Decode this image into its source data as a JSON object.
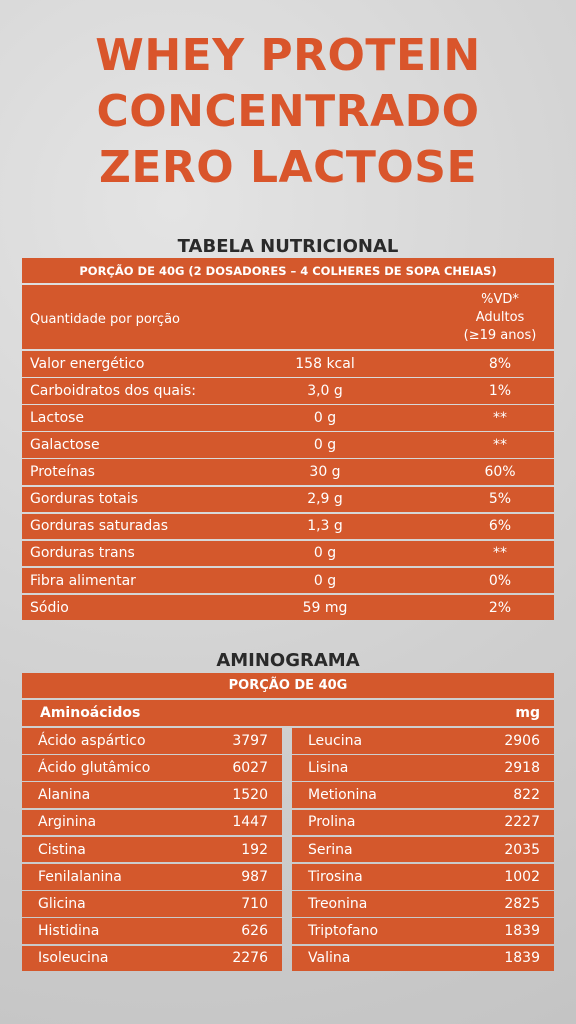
{
  "title": [
    "WHEY PROTEIN",
    "CONCENTRADO",
    "ZERO LACTOSE"
  ],
  "nutrition": {
    "heading": "TABELA NUTRICIONAL",
    "portion": "PORÇÃO DE 40G (2 DOSADORES – 4 COLHERES DE SOPA CHEIAS)",
    "header": {
      "label": "Quantidade por porção",
      "vd": [
        "%VD*",
        "Adultos",
        "(≥19 anos)"
      ]
    },
    "rows": [
      [
        "Valor energético",
        "158 kcal",
        "8%"
      ],
      [
        "Carboidratos dos quais:",
        "3,0 g",
        "1%"
      ],
      [
        "Lactose",
        "0 g",
        "**"
      ],
      [
        "Galactose",
        "0 g",
        "**"
      ],
      [
        "Proteínas",
        "30 g",
        "60%"
      ],
      [
        "Gorduras totais",
        "2,9 g",
        "5%"
      ],
      [
        "Gorduras saturadas",
        "1,3 g",
        "6%"
      ],
      [
        "Gorduras trans",
        "0 g",
        "**"
      ],
      [
        "Fibra alimentar",
        "0 g",
        "0%"
      ],
      [
        "Sódio",
        "59 mg",
        "2%"
      ]
    ]
  },
  "aminogram": {
    "heading": "AMINOGRAMA",
    "portion": "PORÇÃO DE 40G",
    "header": [
      "Aminoácidos",
      "mg"
    ],
    "left": [
      [
        "Ácido aspártico",
        3797
      ],
      [
        "Ácido glutâmico",
        6027
      ],
      [
        "Alanina",
        1520
      ],
      [
        "Arginina",
        1447
      ],
      [
        "Cistina",
        192
      ],
      [
        "Fenilalanina",
        987
      ],
      [
        "Glicina",
        710
      ],
      [
        "Histidina",
        626
      ],
      [
        "Isoleucina",
        2276
      ]
    ],
    "right": [
      [
        "Leucina",
        2906
      ],
      [
        "Lisina",
        2918
      ],
      [
        "Metionina",
        822
      ],
      [
        "Prolina",
        2227
      ],
      [
        "Serina",
        2035
      ],
      [
        "Tirosina",
        1002
      ],
      [
        "Treonina",
        2825
      ],
      [
        "Triptofano",
        1839
      ],
      [
        "Valina",
        1839
      ]
    ]
  }
}
